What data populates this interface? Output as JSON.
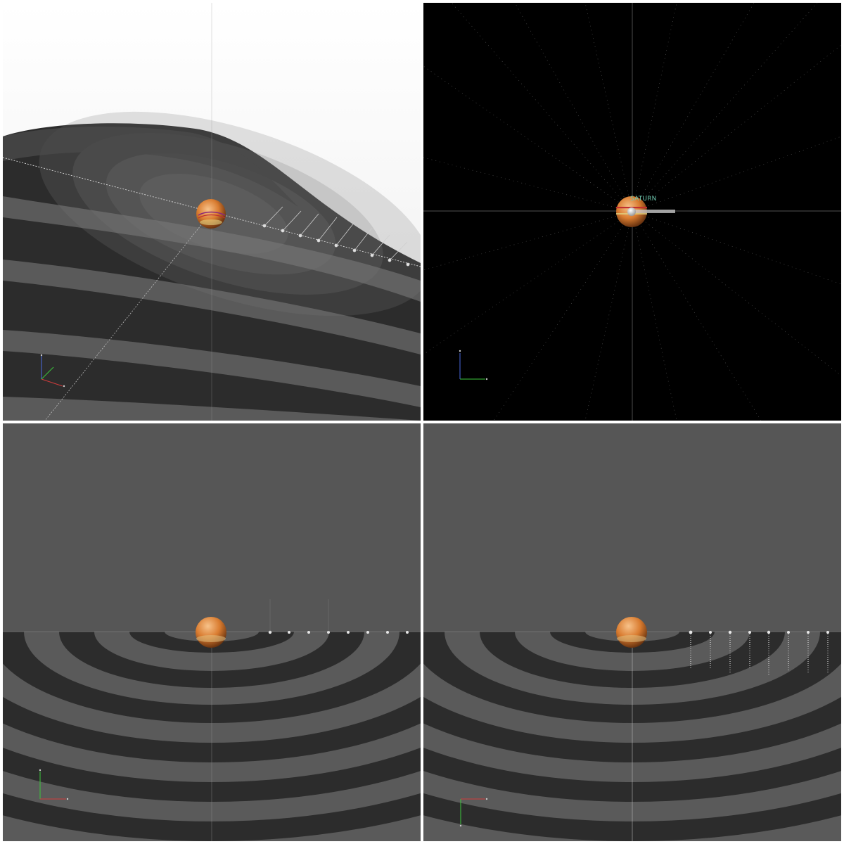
{
  "viewports": {
    "top_left": {
      "name": "perspective-view",
      "background": "#f2f2f2"
    },
    "top_right": {
      "name": "top-view",
      "background": "#000000",
      "planet_label": "SATURN"
    },
    "bottom_left": {
      "name": "front-view",
      "background": "#565656"
    },
    "bottom_right": {
      "name": "side-view",
      "background": "#565656"
    }
  },
  "colors": {
    "ring_dark": "#2c2c2c",
    "ring_light": "#5a5a5a",
    "planet_orange": "#e08a3a",
    "axis_x": "#d23c3c",
    "axis_y": "#3cc83c",
    "axis_z": "#4a6ae0",
    "star_white": "#ffffff"
  },
  "icons": [
    "axis-gizmo-icon",
    "planet-sphere-icon",
    "moon-marker-icon"
  ]
}
